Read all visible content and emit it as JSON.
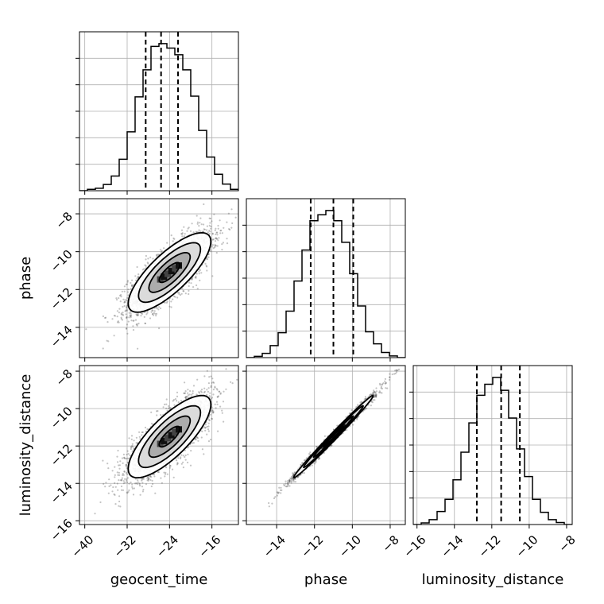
{
  "chart_data": {
    "type": "corner",
    "parameters": [
      "geocent_time",
      "phase",
      "luminosity_distance"
    ],
    "axis_labels": {
      "geocent_time": "geocent_time",
      "phase": "phase",
      "luminosity_distance": "luminosity_distance"
    },
    "ranges": {
      "geocent_time": [
        -41,
        -11
      ],
      "phase": [
        -15.6,
        -7.2
      ],
      "luminosity_distance": [
        -16.2,
        -7.7
      ]
    },
    "ticks": {
      "geocent_time": [
        -40,
        -32,
        -24,
        -16
      ],
      "phase": [
        -14,
        -12,
        -10,
        -8
      ],
      "luminosity_distance": [
        -16,
        -14,
        -12,
        -10,
        -8
      ]
    },
    "tick_labels": {
      "geocent_time": [
        "−40",
        "−32",
        "−24",
        "−16"
      ],
      "phase": [
        "−14",
        "−12",
        "−10",
        "−8"
      ],
      "luminosity_distance": [
        "−16",
        "−14",
        "−12",
        "−10",
        "−8"
      ]
    },
    "quantiles": {
      "geocent_time": [
        -28.5,
        -25.6,
        -22.4
      ],
      "phase": [
        -12.2,
        -11.0,
        -9.95
      ],
      "luminosity_distance": [
        -12.8,
        -11.5,
        -10.5
      ]
    },
    "histograms": {
      "geocent_time": {
        "bin_edges": [
          -41.0,
          -39.5,
          -38.0,
          -36.5,
          -35.0,
          -33.5,
          -32.0,
          -30.5,
          -29.0,
          -27.5,
          -26.0,
          -24.5,
          -23.0,
          -21.5,
          -20.0,
          -18.5,
          -17.0,
          -15.5,
          -14.0,
          -12.5,
          -11.0
        ],
        "counts": [
          0,
          4,
          7,
          18,
          42,
          90,
          168,
          268,
          345,
          412,
          420,
          407,
          388,
          345,
          270,
          172,
          96,
          47,
          19,
          4
        ]
      },
      "phase": {
        "bin_edges": [
          -15.6,
          -15.18,
          -14.76,
          -14.34,
          -13.92,
          -13.5,
          -13.08,
          -12.66,
          -12.24,
          -11.82,
          -11.4,
          -10.98,
          -10.56,
          -10.14,
          -9.72,
          -9.3,
          -8.88,
          -8.46,
          -8.04,
          -7.62,
          -7.2
        ],
        "counts": [
          0,
          3,
          10,
          28,
          58,
          108,
          178,
          250,
          318,
          332,
          342,
          318,
          268,
          195,
          120,
          60,
          32,
          12,
          4,
          0
        ]
      },
      "luminosity_distance": {
        "bin_edges": [
          -16.2,
          -15.775,
          -15.35,
          -14.925,
          -14.5,
          -14.075,
          -13.65,
          -13.225,
          -12.8,
          -12.375,
          -11.95,
          -11.525,
          -11.1,
          -10.675,
          -10.25,
          -9.825,
          -9.4,
          -8.975,
          -8.55,
          -8.125,
          -7.7
        ],
        "counts": [
          0,
          4,
          12,
          32,
          62,
          110,
          178,
          250,
          318,
          345,
          362,
          330,
          262,
          186,
          118,
          62,
          30,
          12,
          5,
          0
        ]
      }
    },
    "joint": [
      {
        "x": "geocent_time",
        "y": "phase",
        "mean": [
          -24,
          -11.1
        ],
        "std": [
          3.9,
          1.05
        ],
        "corr": 0.78,
        "contour_levels_sigma": [
          0.5,
          1.0,
          1.5,
          2.0
        ]
      },
      {
        "x": "geocent_time",
        "y": "luminosity_distance",
        "mean": [
          -24,
          -11.5
        ],
        "std": [
          3.9,
          1.1
        ],
        "corr": 0.78,
        "contour_levels_sigma": [
          0.5,
          1.0,
          1.5,
          2.0
        ]
      },
      {
        "x": "phase",
        "y": "luminosity_distance",
        "mean": [
          -11.0,
          -11.5
        ],
        "std": [
          1.05,
          1.1
        ],
        "corr": 0.993,
        "contour_levels_sigma": [
          0.5,
          1.0,
          1.5,
          2.0
        ]
      }
    ],
    "grid": true,
    "colors": {
      "lines": "#000000",
      "points": "#555555",
      "grid": "#b0b0b0"
    }
  }
}
